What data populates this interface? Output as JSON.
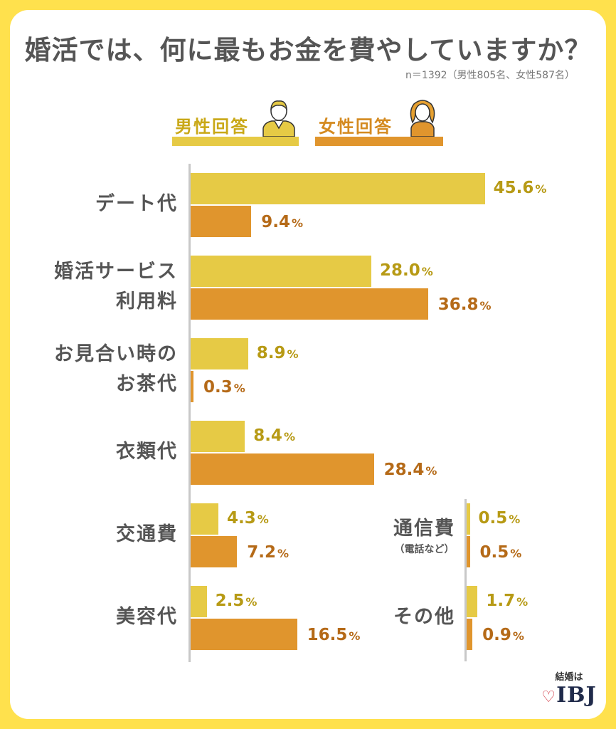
{
  "title": "婚活では、何に最もお金を費やしていますか？",
  "sample_note": "n＝1392（男性805名、女性587名）",
  "legend": {
    "male": "男性回答",
    "female": "女性回答"
  },
  "logo": {
    "top": "結婚は",
    "main": "IBJ"
  },
  "colors": {
    "background": "#FFE14D",
    "male": "#E6CA45",
    "female": "#E0952D",
    "male_text": "#B79A15",
    "female_text": "#B56A18"
  },
  "chart_data": {
    "type": "bar",
    "orientation": "horizontal",
    "unit": "%",
    "series": [
      {
        "name": "男性回答",
        "values": [
          45.6,
          28.0,
          8.9,
          8.4,
          4.3,
          2.5,
          0.5,
          1.7
        ]
      },
      {
        "name": "女性回答",
        "values": [
          9.4,
          36.8,
          0.3,
          28.4,
          7.2,
          16.5,
          0.5,
          0.9
        ]
      }
    ],
    "categories": [
      {
        "lines": [
          "デート代"
        ],
        "male": 45.6,
        "female": 9.4,
        "male_label": "45.6",
        "female_label": "9.4"
      },
      {
        "lines": [
          "婚活サービス",
          "利用料"
        ],
        "male": 28.0,
        "female": 36.8,
        "male_label": "28.0",
        "female_label": "36.8"
      },
      {
        "lines": [
          "お見合い時の",
          "お茶代"
        ],
        "male": 8.9,
        "female": 0.3,
        "male_label": "8.9",
        "female_label": "0.3"
      },
      {
        "lines": [
          "衣類代"
        ],
        "male": 8.4,
        "female": 28.4,
        "male_label": "8.4",
        "female_label": "28.4"
      },
      {
        "lines": [
          "交通費"
        ],
        "male": 4.3,
        "female": 7.2,
        "male_label": "4.3",
        "female_label": "7.2"
      },
      {
        "lines": [
          "美容代"
        ],
        "male": 2.5,
        "female": 16.5,
        "male_label": "2.5",
        "female_label": "16.5"
      },
      {
        "lines": [
          "通信費"
        ],
        "sub": "（電話など）",
        "male": 0.5,
        "female": 0.5,
        "male_label": "0.5",
        "female_label": "0.5"
      },
      {
        "lines": [
          "その他"
        ],
        "male": 1.7,
        "female": 0.9,
        "male_label": "1.7",
        "female_label": "0.9"
      }
    ]
  }
}
